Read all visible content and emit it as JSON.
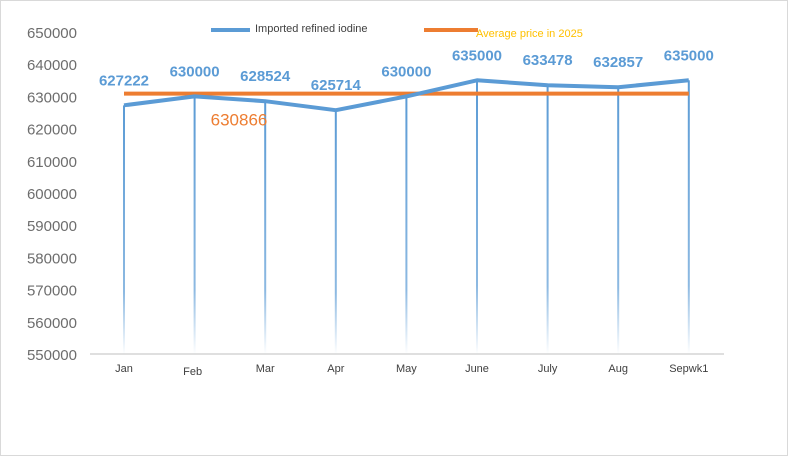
{
  "chart_data": {
    "type": "line",
    "categories": [
      "Jan",
      "Feb",
      "Mar",
      "Apr",
      "May",
      "June",
      "July",
      "Aug",
      "Sepwk1"
    ],
    "series": [
      {
        "name": "Imported refined iodine",
        "values": [
          627222,
          630000,
          628524,
          625714,
          630000,
          635000,
          633478,
          632857,
          635000
        ],
        "data_labels": [
          "627222",
          "630000",
          "628524",
          "625714",
          "630000",
          "635000",
          "633478",
          "632857",
          "635000"
        ],
        "color": "#5b9bd5"
      },
      {
        "name": "Average price in 2025",
        "value": 630866,
        "data_label": "630866",
        "color": "#ed7d31"
      }
    ],
    "ylim": [
      550000,
      650000
    ],
    "yticks": [
      "550000",
      "560000",
      "570000",
      "580000",
      "590000",
      "600000",
      "610000",
      "620000",
      "630000",
      "640000",
      "650000"
    ],
    "legend_position": "top",
    "legend_text_colors": [
      "#404040",
      "#ffc000"
    ],
    "grid": false,
    "vertical_drop_lines": true
  }
}
